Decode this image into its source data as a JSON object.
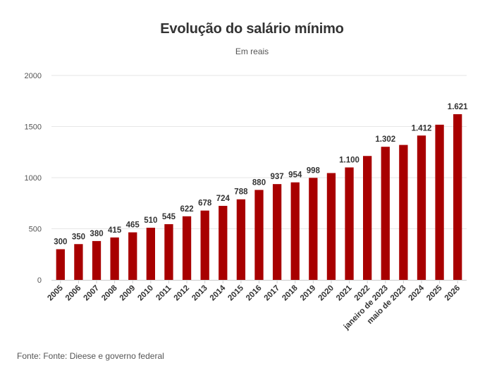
{
  "chart_data": {
    "type": "bar",
    "title": "Evolução do salário mínimo",
    "subtitle": "Em reais",
    "source": "Fonte: Fonte: Dieese e governo federal",
    "categories": [
      "2005",
      "2006",
      "2007",
      "2008",
      "2009",
      "2010",
      "2011",
      "2012",
      "2013",
      "2014",
      "2015",
      "2016",
      "2017",
      "2018",
      "2019",
      "2020",
      "2021",
      "2022",
      "janeiro de 2023",
      "maio de 2023",
      "2024",
      "2025",
      "2026"
    ],
    "values": [
      300,
      350,
      380,
      415,
      465,
      510,
      545,
      622,
      678,
      724,
      788,
      880,
      937,
      954,
      998,
      1045,
      1100,
      1212,
      1302,
      1320,
      1412,
      1518,
      1621
    ],
    "data_labels": [
      "300",
      "350",
      "380",
      "415",
      "465",
      "510",
      "545",
      "622",
      "678",
      "724",
      "788",
      "880",
      "937",
      "954",
      "998",
      "",
      "1.100",
      "",
      "1.302",
      "",
      "1.412",
      "",
      "1.621"
    ],
    "yticks": [
      "0",
      "500",
      "1000",
      "1500",
      "2000"
    ],
    "ylim": [
      0,
      2000
    ],
    "grid": true,
    "legend": "none",
    "bar_color": "#a80000"
  }
}
